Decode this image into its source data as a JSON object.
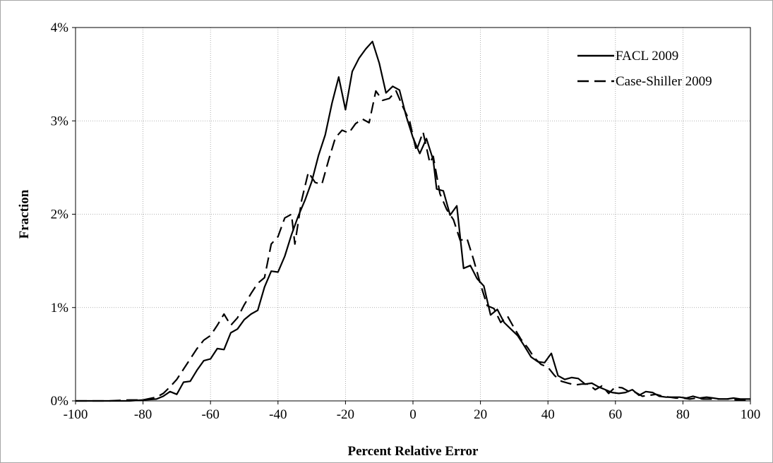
{
  "chart_data": {
    "type": "line",
    "title": "",
    "xlabel": "Percent Relative Error",
    "ylabel": "Fraction",
    "xlim": [
      -100,
      100
    ],
    "ylim": [
      0,
      0.04
    ],
    "x_ticks": [
      -100,
      -80,
      -60,
      -40,
      -20,
      0,
      20,
      40,
      60,
      80,
      100
    ],
    "x_tick_labels": [
      "-100",
      "-80",
      "-60",
      "-40",
      "-20",
      "0",
      "20",
      "40",
      "60",
      "80",
      "100"
    ],
    "y_ticks": [
      0,
      0.01,
      0.02,
      0.03,
      0.04
    ],
    "y_tick_labels": [
      "0%",
      "1%",
      "2%",
      "3%",
      "4%"
    ],
    "grid": true,
    "legend_position": "top-right",
    "series": [
      {
        "name": "FACL 2009",
        "line_style": "solid",
        "color": "#000000",
        "points": [
          [
            -100,
            0.0
          ],
          [
            -90,
            0.0
          ],
          [
            -84,
            0.0
          ],
          [
            -80,
            0.0001
          ],
          [
            -76,
            0.0002
          ],
          [
            -74,
            0.0005
          ],
          [
            -72,
            0.001
          ],
          [
            -70,
            0.0007
          ],
          [
            -68,
            0.002
          ],
          [
            -66,
            0.0021
          ],
          [
            -64,
            0.0033
          ],
          [
            -62,
            0.0043
          ],
          [
            -60,
            0.0045
          ],
          [
            -58,
            0.0056
          ],
          [
            -56,
            0.0055
          ],
          [
            -54,
            0.0073
          ],
          [
            -52,
            0.0077
          ],
          [
            -50,
            0.0087
          ],
          [
            -48,
            0.0093
          ],
          [
            -46,
            0.0097
          ],
          [
            -44,
            0.0122
          ],
          [
            -42,
            0.0139
          ],
          [
            -40,
            0.0138
          ],
          [
            -38,
            0.0155
          ],
          [
            -36,
            0.0178
          ],
          [
            -34,
            0.0198
          ],
          [
            -32,
            0.0215
          ],
          [
            -30,
            0.0235
          ],
          [
            -28,
            0.0263
          ],
          [
            -26,
            0.0285
          ],
          [
            -24,
            0.0319
          ],
          [
            -22,
            0.0347
          ],
          [
            -20,
            0.0312
          ],
          [
            -18,
            0.0353
          ],
          [
            -16,
            0.0367
          ],
          [
            -14,
            0.0377
          ],
          [
            -12,
            0.0385
          ],
          [
            -10,
            0.0362
          ],
          [
            -8,
            0.033
          ],
          [
            -6,
            0.0337
          ],
          [
            -4,
            0.0333
          ],
          [
            -2,
            0.0305
          ],
          [
            0,
            0.0282
          ],
          [
            2,
            0.0265
          ],
          [
            4,
            0.0281
          ],
          [
            6,
            0.0258
          ],
          [
            7,
            0.0227
          ],
          [
            9,
            0.0225
          ],
          [
            11,
            0.0199
          ],
          [
            13,
            0.0209
          ],
          [
            15,
            0.0142
          ],
          [
            17,
            0.0145
          ],
          [
            19,
            0.0131
          ],
          [
            21,
            0.0123
          ],
          [
            23,
            0.0092
          ],
          [
            25,
            0.0098
          ],
          [
            27,
            0.0084
          ],
          [
            29,
            0.0077
          ],
          [
            31,
            0.007
          ],
          [
            33,
            0.0059
          ],
          [
            35,
            0.0047
          ],
          [
            37,
            0.0042
          ],
          [
            39,
            0.0041
          ],
          [
            41,
            0.0051
          ],
          [
            43,
            0.0027
          ],
          [
            45,
            0.0023
          ],
          [
            47,
            0.0025
          ],
          [
            49,
            0.0024
          ],
          [
            51,
            0.0018
          ],
          [
            53,
            0.0019
          ],
          [
            55,
            0.0015
          ],
          [
            57,
            0.0012
          ],
          [
            59,
            0.0009
          ],
          [
            61,
            0.0008
          ],
          [
            63,
            0.0009
          ],
          [
            65,
            0.0012
          ],
          [
            67,
            0.0006
          ],
          [
            69,
            0.001
          ],
          [
            71,
            0.0009
          ],
          [
            73,
            0.0005
          ],
          [
            75,
            0.0004
          ],
          [
            77,
            0.0004
          ],
          [
            79,
            0.0004
          ],
          [
            81,
            0.0003
          ],
          [
            83,
            0.0005
          ],
          [
            85,
            0.0003
          ],
          [
            87,
            0.0004
          ],
          [
            89,
            0.0003
          ],
          [
            91,
            0.0002
          ],
          [
            93,
            0.0002
          ],
          [
            95,
            0.0003
          ],
          [
            97,
            0.0002
          ],
          [
            100,
            0.0002
          ]
        ]
      },
      {
        "name": "Case-Shiller 2009",
        "line_style": "dashed",
        "color": "#000000",
        "points": [
          [
            -100,
            0.0
          ],
          [
            -90,
            0.0
          ],
          [
            -84,
            0.0001
          ],
          [
            -80,
            0.0001
          ],
          [
            -76,
            0.0004
          ],
          [
            -74,
            0.0008
          ],
          [
            -72,
            0.0015
          ],
          [
            -70,
            0.0023
          ],
          [
            -68,
            0.0034
          ],
          [
            -66,
            0.0045
          ],
          [
            -64,
            0.0056
          ],
          [
            -62,
            0.0065
          ],
          [
            -60,
            0.007
          ],
          [
            -58,
            0.0081
          ],
          [
            -56,
            0.0093
          ],
          [
            -54,
            0.0081
          ],
          [
            -52,
            0.0089
          ],
          [
            -50,
            0.0103
          ],
          [
            -48,
            0.0115
          ],
          [
            -46,
            0.0126
          ],
          [
            -44,
            0.0132
          ],
          [
            -42,
            0.0168
          ],
          [
            -40,
            0.0176
          ],
          [
            -38,
            0.0196
          ],
          [
            -36,
            0.02
          ],
          [
            -35,
            0.0168
          ],
          [
            -33,
            0.0215
          ],
          [
            -31,
            0.0245
          ],
          [
            -29,
            0.0234
          ],
          [
            -27,
            0.0232
          ],
          [
            -25,
            0.0258
          ],
          [
            -23,
            0.0282
          ],
          [
            -21,
            0.029
          ],
          [
            -19,
            0.0287
          ],
          [
            -17,
            0.0297
          ],
          [
            -15,
            0.0302
          ],
          [
            -13,
            0.0298
          ],
          [
            -11,
            0.0332
          ],
          [
            -9,
            0.0322
          ],
          [
            -7,
            0.0324
          ],
          [
            -5,
            0.0332
          ],
          [
            -3,
            0.0315
          ],
          [
            -1,
            0.03
          ],
          [
            1,
            0.0268
          ],
          [
            3,
            0.0288
          ],
          [
            5,
            0.0255
          ],
          [
            6,
            0.0262
          ],
          [
            8,
            0.0222
          ],
          [
            10,
            0.0205
          ],
          [
            12,
            0.0194
          ],
          [
            14,
            0.0172
          ],
          [
            16,
            0.0174
          ],
          [
            18,
            0.0151
          ],
          [
            20,
            0.0125
          ],
          [
            22,
            0.0102
          ],
          [
            24,
            0.0099
          ],
          [
            26,
            0.0084
          ],
          [
            28,
            0.0091
          ],
          [
            30,
            0.0078
          ],
          [
            32,
            0.0066
          ],
          [
            34,
            0.0057
          ],
          [
            36,
            0.0046
          ],
          [
            38,
            0.0039
          ],
          [
            40,
            0.0036
          ],
          [
            42,
            0.0027
          ],
          [
            44,
            0.0021
          ],
          [
            46,
            0.0019
          ],
          [
            48,
            0.0017
          ],
          [
            50,
            0.0018
          ],
          [
            52,
            0.0018
          ],
          [
            54,
            0.0012
          ],
          [
            56,
            0.0016
          ],
          [
            58,
            0.0008
          ],
          [
            60,
            0.0015
          ],
          [
            62,
            0.0014
          ],
          [
            64,
            0.001
          ],
          [
            66,
            0.0009
          ],
          [
            68,
            0.0005
          ],
          [
            70,
            0.0006
          ],
          [
            72,
            0.0007
          ],
          [
            74,
            0.0005
          ],
          [
            76,
            0.0004
          ],
          [
            78,
            0.0003
          ],
          [
            80,
            0.0003
          ],
          [
            82,
            0.0002
          ],
          [
            84,
            0.0003
          ],
          [
            86,
            0.0002
          ],
          [
            88,
            0.0002
          ],
          [
            90,
            0.0002
          ],
          [
            92,
            0.0002
          ],
          [
            94,
            0.0002
          ],
          [
            96,
            0.0001
          ],
          [
            100,
            0.0001
          ]
        ]
      }
    ]
  }
}
